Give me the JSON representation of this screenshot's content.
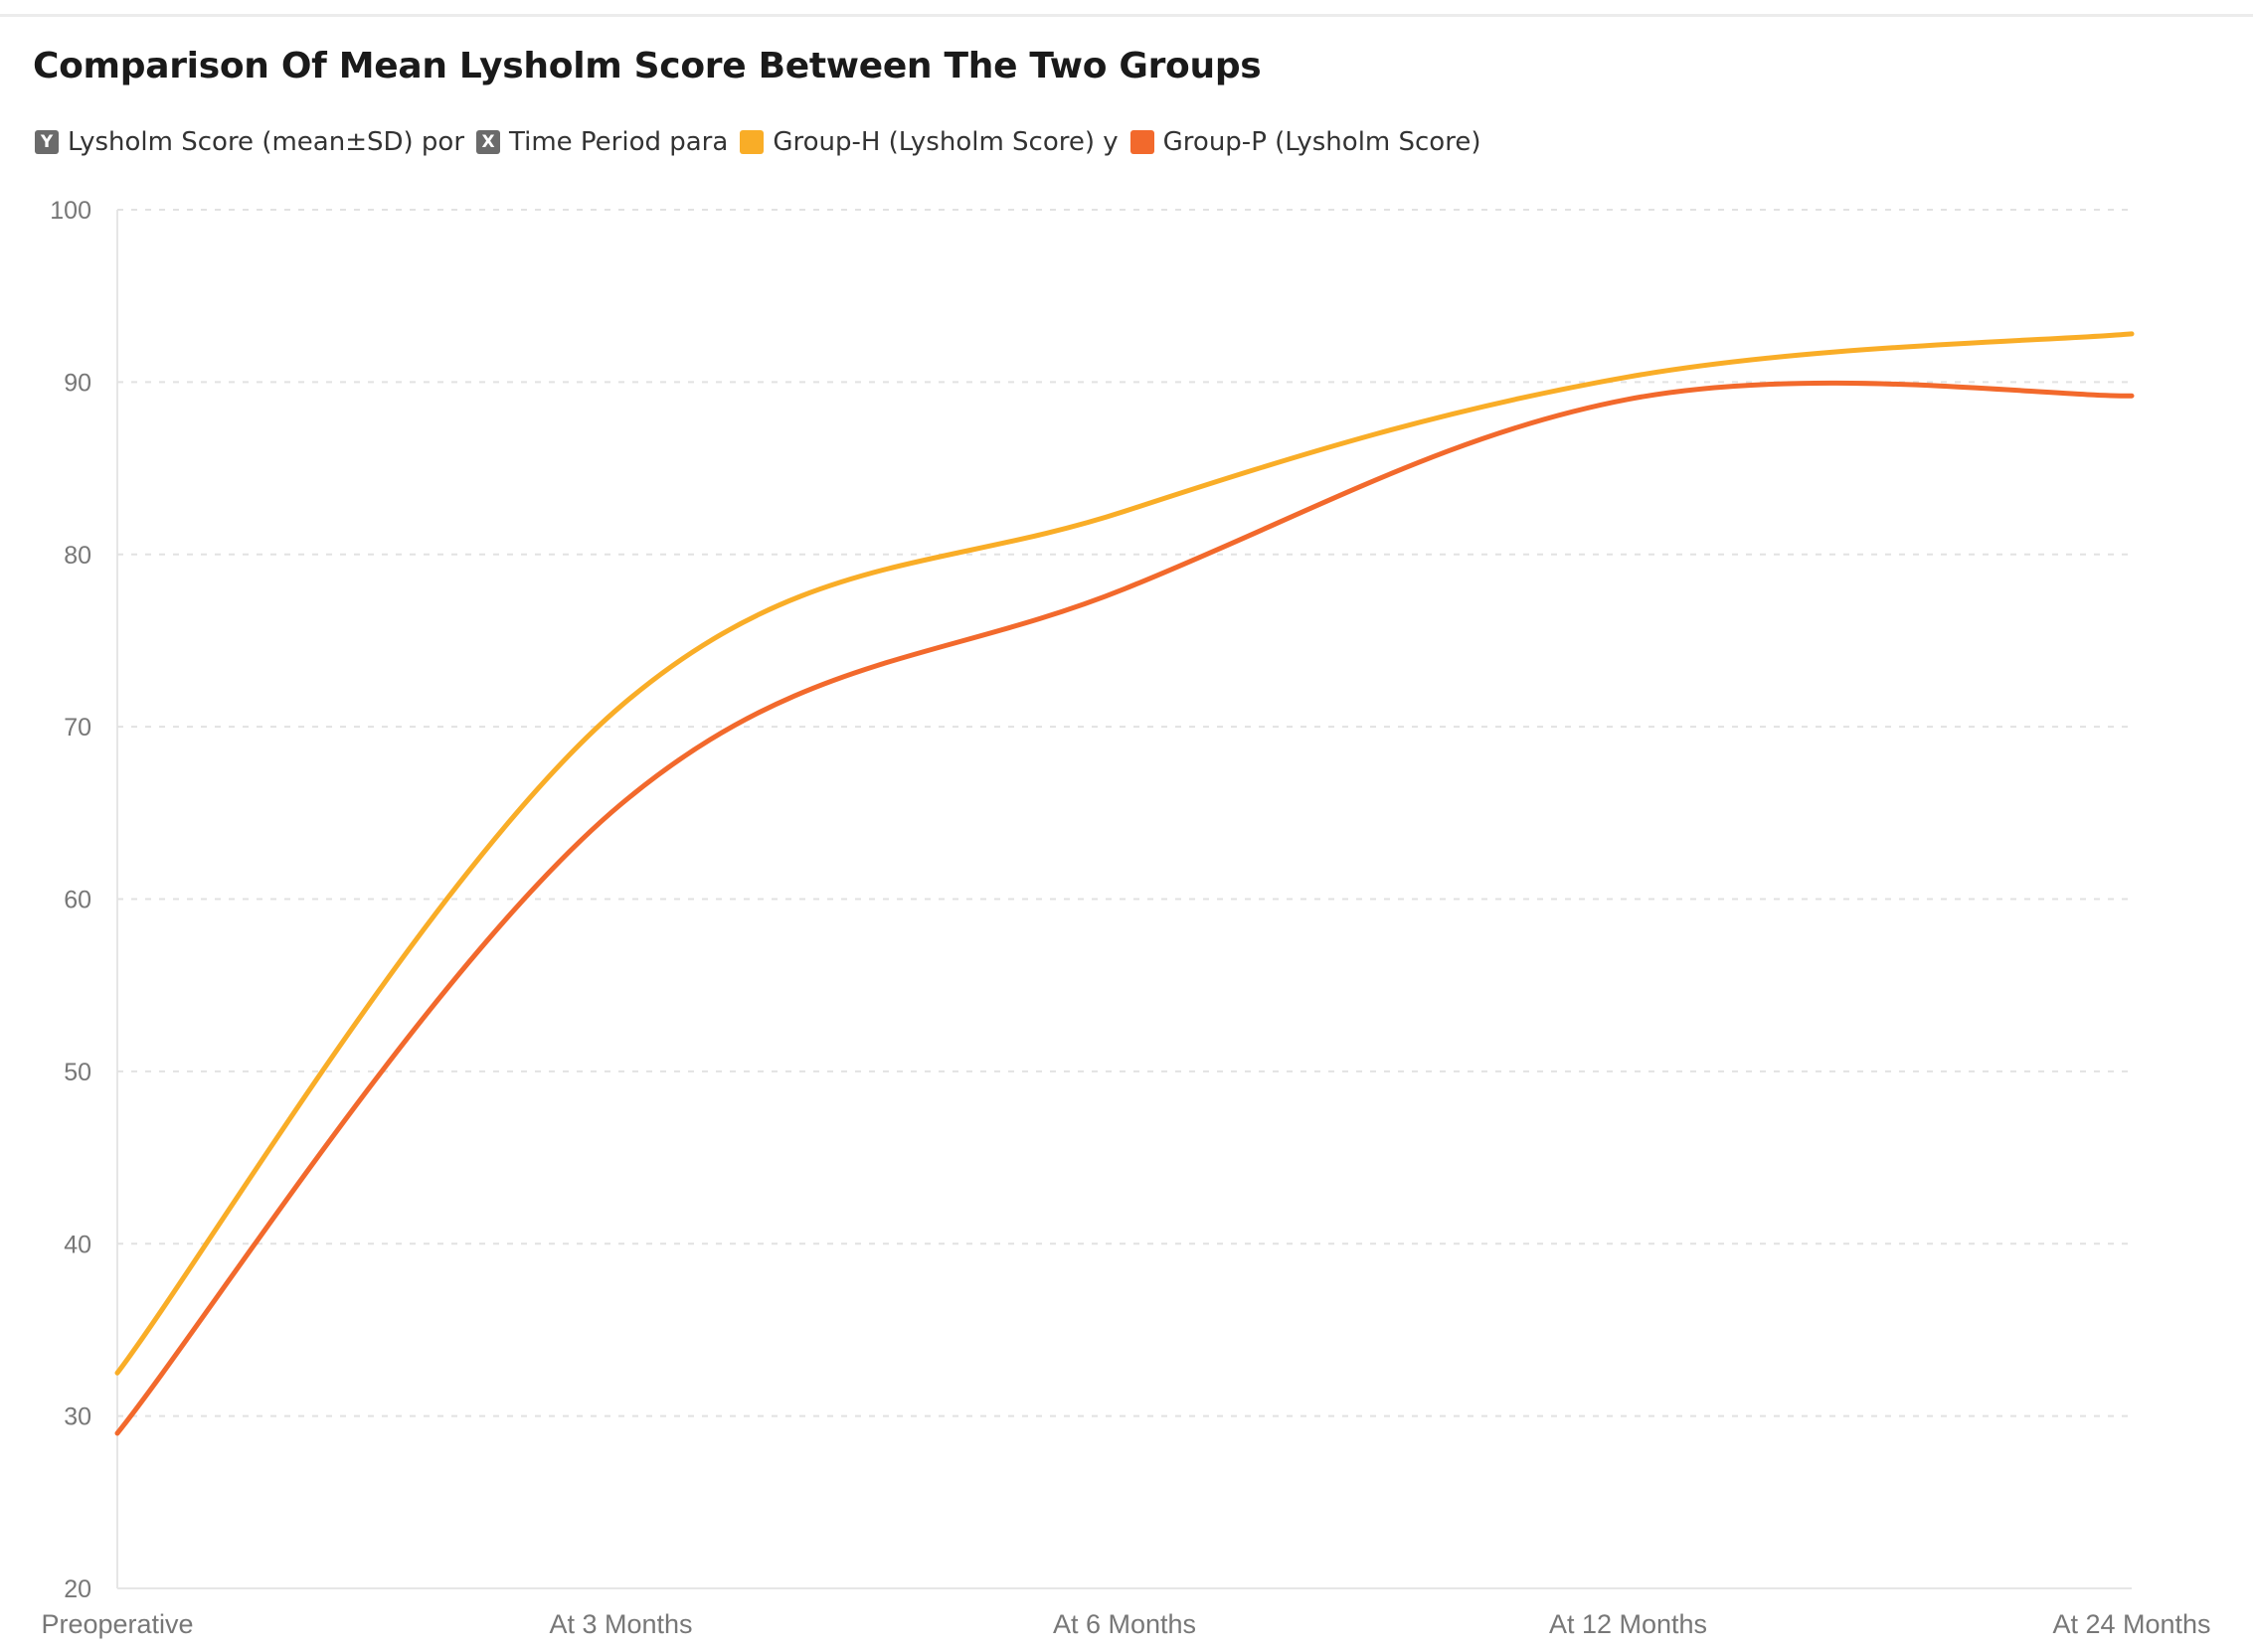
{
  "header": {
    "title": "Comparison Of Mean Lysholm Score Between The Two Groups"
  },
  "legend": {
    "y_badge": "Y",
    "y_label": "Lysholm Score (mean±SD) por",
    "x_badge": "X",
    "x_label": "Time Period para",
    "series_h_label": "Group-H (Lysholm Score) y",
    "series_p_label": "Group-P (Lysholm Score)"
  },
  "colors": {
    "group_h": "#f9ad27",
    "group_p": "#f2692c",
    "grid": "#e2e2e2",
    "axis_badge": "#6b6b6b"
  },
  "chart_data": {
    "type": "line",
    "title": "Comparison Of Mean Lysholm Score Between The Two Groups",
    "xlabel": "Time Period",
    "ylabel": "Lysholm Score (mean±SD)",
    "categories": [
      "Preoperative",
      "At 3 Months",
      "At 6 Months",
      "At 12 Months",
      "At 24 Months"
    ],
    "ylim": [
      20,
      100
    ],
    "yticks": [
      20,
      30,
      40,
      50,
      60,
      70,
      80,
      90,
      100
    ],
    "grid": true,
    "legend_position": "top-left",
    "series": [
      {
        "name": "Group-H (Lysholm Score)",
        "color": "#f9ad27",
        "values": [
          32.5,
          71.2,
          82.5,
          90.3,
          92.8
        ]
      },
      {
        "name": "Group-P (Lysholm Score)",
        "color": "#f2692c",
        "values": [
          29.0,
          65.5,
          78.0,
          89.0,
          89.2
        ]
      }
    ]
  }
}
